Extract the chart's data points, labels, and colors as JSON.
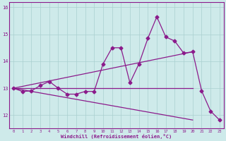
{
  "xlabel": "Windchill (Refroidissement éolien,°C)",
  "xlim": [
    -0.5,
    23.5
  ],
  "ylim": [
    11.5,
    16.2
  ],
  "yticks": [
    12,
    13,
    14,
    15,
    16
  ],
  "xticks": [
    0,
    1,
    2,
    3,
    4,
    5,
    6,
    7,
    8,
    9,
    10,
    11,
    12,
    13,
    14,
    15,
    16,
    17,
    18,
    19,
    20,
    21,
    22,
    23
  ],
  "bg_color": "#ceeaea",
  "line_color": "#8B1A8B",
  "grid_color": "#aacfcf",
  "line1_x": [
    0,
    1,
    2,
    3,
    4,
    5,
    6,
    7,
    8,
    9,
    10,
    11,
    12,
    13,
    14,
    15,
    16,
    17,
    18,
    19,
    20,
    21,
    22,
    23
  ],
  "line1_y": [
    13.0,
    12.88,
    12.9,
    13.1,
    13.25,
    13.0,
    12.78,
    12.78,
    12.88,
    12.88,
    13.9,
    14.5,
    14.5,
    13.2,
    13.9,
    14.85,
    15.65,
    14.9,
    14.75,
    14.3,
    14.35,
    12.9,
    12.15,
    11.82
  ],
  "line2_x": [
    0,
    20
  ],
  "line2_y": [
    13.0,
    14.35
  ],
  "line3_x": [
    0,
    20
  ],
  "line3_y": [
    13.0,
    13.0
  ],
  "line4_x": [
    0,
    20
  ],
  "line4_y": [
    13.0,
    11.82
  ],
  "markersize": 2.5
}
